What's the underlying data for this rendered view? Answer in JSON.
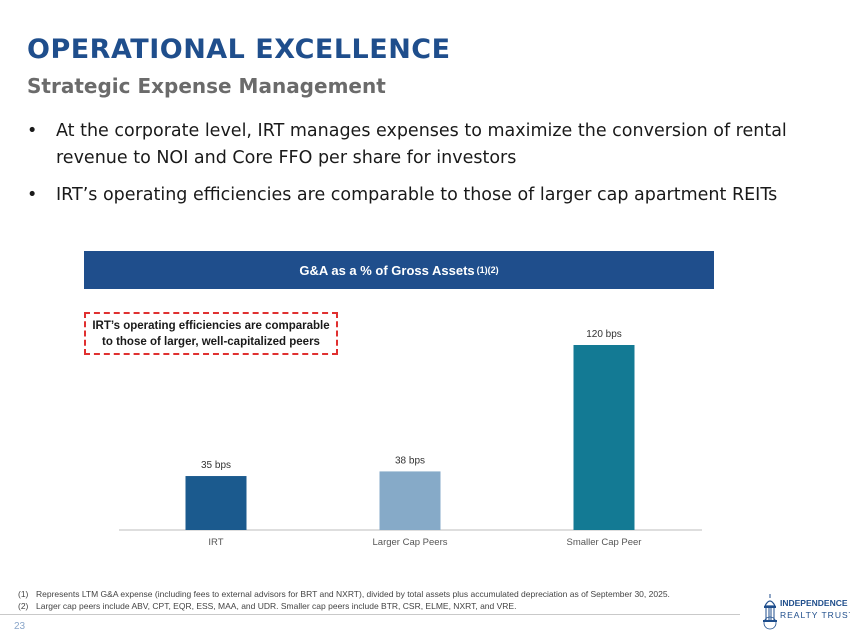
{
  "header": {
    "title": "OPERATIONAL EXCELLENCE",
    "subtitle": "Strategic Expense Management"
  },
  "bullets": [
    "At the corporate level, IRT manages expenses to maximize the conversion of rental revenue to NOI and Core FFO per share for investors",
    "IRT’s operating efficiencies are comparable to those of larger cap apartment REITs"
  ],
  "bullet_symbol": "•",
  "callout": {
    "line1": "IRT’s operating efficiencies are comparable",
    "line2": "to those of larger, well-capitalized peers"
  },
  "chart_data": {
    "type": "bar",
    "title": "G&A as a % of Gross Assets",
    "title_superscript": "(1)(2)",
    "categories": [
      "IRT",
      "Larger Cap Peers",
      "Smaller Cap Peer"
    ],
    "values": [
      35,
      38,
      120
    ],
    "data_labels": [
      "35 bps",
      "38 bps",
      "120 bps"
    ],
    "unit": "bps",
    "ylim": [
      0,
      120
    ],
    "xlabel": "",
    "ylabel": "",
    "grid": false,
    "bar_colors": [
      "#1b5a8e",
      "#86aac8",
      "#137a94"
    ]
  },
  "footnotes": [
    {
      "num": "(1)",
      "text": "Represents LTM G&A expense (including fees to external advisors for BRT and NXRT), divided by total assets plus accumulated depreciation as of September 30, 2025."
    },
    {
      "num": "(2)",
      "text": "Larger cap peers include ABV, CPT, EQR, ESS, MAA, and UDR. Smaller cap peers include BTR, CSR, ELME, NXRT, and VRE."
    }
  ],
  "page_number": "23",
  "logo": {
    "line1": "INDEPENDENCE",
    "line2": "REALTY TRUST"
  },
  "colors": {
    "brand_blue": "#1f4e8c",
    "callout_border": "#e03030",
    "subtitle_gray": "#6b6b6b"
  }
}
